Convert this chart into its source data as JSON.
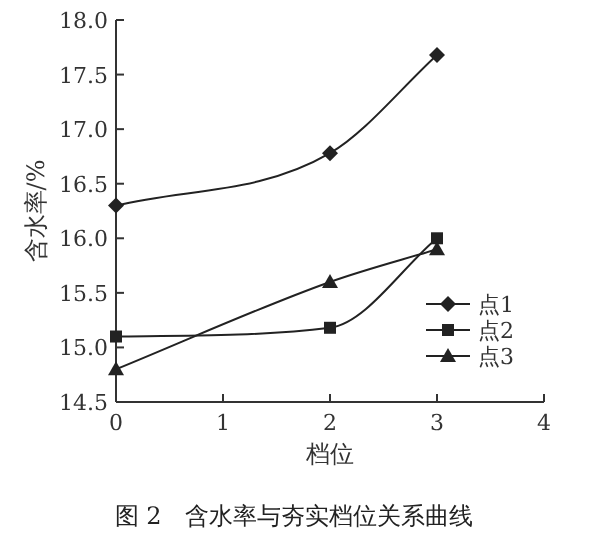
{
  "chart_data": {
    "type": "line",
    "title": "图 2　含水率与夯实档位关系曲线",
    "xlabel": "档位",
    "ylabel": "含水率/%",
    "x": [
      0,
      2,
      3
    ],
    "xlim": [
      0,
      4
    ],
    "xticks": [
      0,
      1,
      2,
      3,
      4
    ],
    "ylim": [
      14.5,
      18.0
    ],
    "yticks": [
      {
        "value": 14.5,
        "label": "14.5"
      },
      {
        "value": 15.0,
        "label": "15.0"
      },
      {
        "value": 15.5,
        "label": "15.5"
      },
      {
        "value": 16.0,
        "label": "16.0"
      },
      {
        "value": 16.5,
        "label": "16.5"
      },
      {
        "value": 17.0,
        "label": "17.0"
      },
      {
        "value": 17.5,
        "label": "17.5"
      },
      {
        "value": 18.0,
        "label": "18.0"
      }
    ],
    "grid": false,
    "legend": "right",
    "series": [
      {
        "name": "点1",
        "color": "#222222",
        "marker": "diamond",
        "values": [
          16.3,
          16.78,
          17.68
        ]
      },
      {
        "name": "点2",
        "color": "#222222",
        "marker": "square",
        "values": [
          15.1,
          15.18,
          16.0
        ]
      },
      {
        "name": "点3",
        "color": "#222222",
        "marker": "triangle",
        "values": [
          14.8,
          15.6,
          15.9
        ]
      }
    ]
  }
}
